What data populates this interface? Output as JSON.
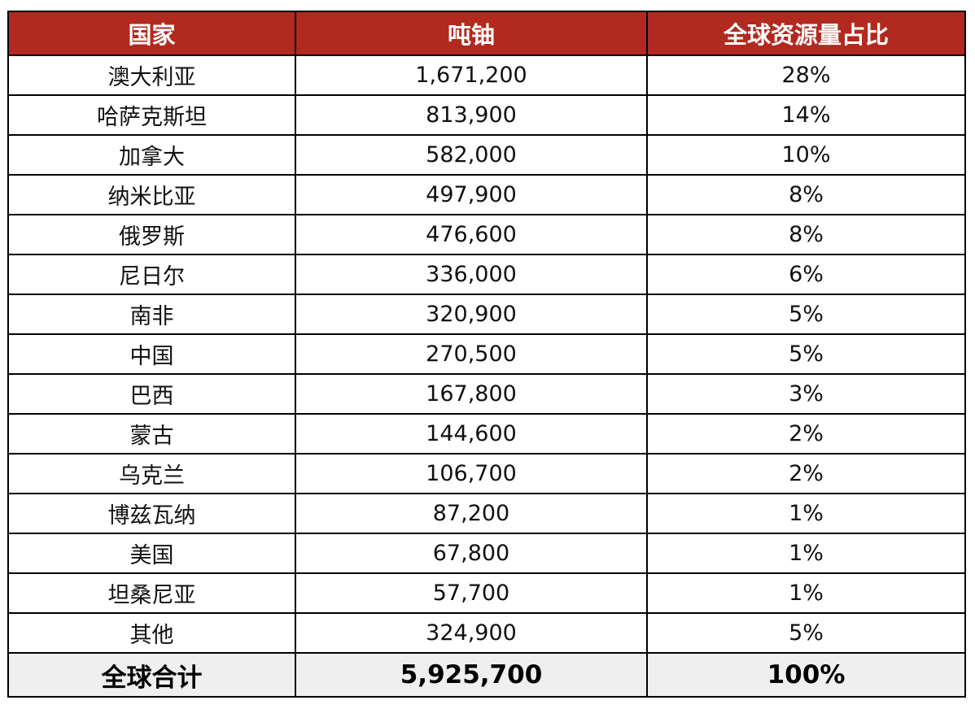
{
  "headers": [
    "国家",
    "吨铀",
    "全球资源量占比"
  ],
  "rows": [
    {
      "country": "澳大利亚",
      "tonnes": "1,671,200",
      "share": "28%"
    },
    {
      "country": "哈萨克斯坦",
      "tonnes": "813,900",
      "share": "14%"
    },
    {
      "country": "加拿大",
      "tonnes": "582,000",
      "share": "10%"
    },
    {
      "country": "纳米比亚",
      "tonnes": "497,900",
      "share": "8%"
    },
    {
      "country": "俄罗斯",
      "tonnes": "476,600",
      "share": "8%"
    },
    {
      "country": "尼日尔",
      "tonnes": "336,000",
      "share": "6%"
    },
    {
      "country": "南非",
      "tonnes": "320,900",
      "share": "5%"
    },
    {
      "country": "中国",
      "tonnes": "270,500",
      "share": "5%"
    },
    {
      "country": "巴西",
      "tonnes": "167,800",
      "share": "3%"
    },
    {
      "country": "蒙古",
      "tonnes": "144,600",
      "share": "2%"
    },
    {
      "country": "乌克兰",
      "tonnes": "106,700",
      "share": "2%"
    },
    {
      "country": "博兹瓦纳",
      "tonnes": "87,200",
      "share": "1%"
    },
    {
      "country": "美国",
      "tonnes": "67,800",
      "share": "1%"
    },
    {
      "country": "坦桑尼亚",
      "tonnes": "57,700",
      "share": "1%"
    },
    {
      "country": "其他",
      "tonnes": "324,900",
      "share": "5%"
    }
  ],
  "total": {
    "label": "全球合计",
    "tonnes": "5,925,700",
    "share": "100%"
  },
  "colors": {
    "header_bg": "#b22a1f",
    "header_text": "#ffffff",
    "total_bg": "#efefef",
    "border": "#000000"
  }
}
